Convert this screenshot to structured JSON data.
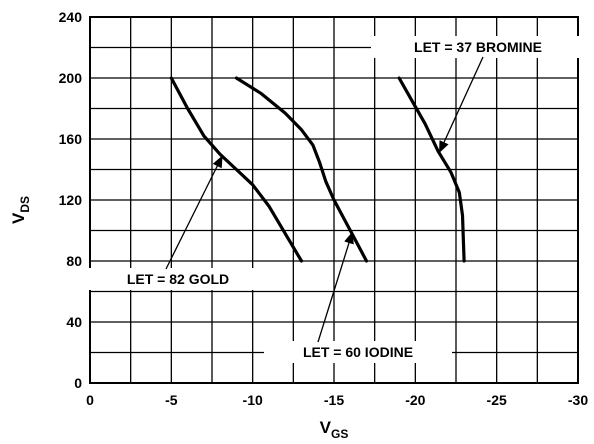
{
  "chart_data": {
    "type": "line",
    "xlabel": {
      "main": "V",
      "sub": "GS"
    },
    "ylabel": {
      "main": "V",
      "sub": "DS"
    },
    "xlim": [
      0,
      -30
    ],
    "ylim": [
      0,
      240
    ],
    "x_ticks": [
      0,
      -5,
      -10,
      -15,
      -20,
      -25,
      -30
    ],
    "y_ticks": [
      0,
      40,
      80,
      120,
      160,
      200,
      240
    ],
    "grid": true,
    "series": [
      {
        "name": "LET = 82 GOLD",
        "x": [
          -5,
          -6,
          -7,
          -8,
          -9,
          -10,
          -11,
          -12,
          -13
        ],
        "y": [
          200,
          180,
          162,
          150,
          140,
          130,
          116,
          98,
          80
        ]
      },
      {
        "name": "LET = 60 IODINE",
        "x": [
          -9,
          -10.5,
          -12,
          -13,
          -13.7,
          -14.1,
          -14.5,
          -15,
          -16,
          -17
        ],
        "y": [
          200,
          190,
          177,
          166,
          156,
          145,
          132,
          120,
          100,
          80
        ]
      },
      {
        "name": "LET = 37 BROMINE",
        "x": [
          -19,
          -19.8,
          -20.6,
          -21.4,
          -22.2,
          -22.7,
          -22.9,
          -23
        ],
        "y": [
          200,
          185,
          170,
          152,
          138,
          125,
          110,
          80
        ]
      }
    ],
    "annotations": [
      {
        "text": "LET = 82 GOLD",
        "series": 0,
        "x": -8,
        "y": 150
      },
      {
        "text": "LET = 60 IODINE",
        "series": 1,
        "x": -16,
        "y": 100
      },
      {
        "text": "LET = 37 BROMINE",
        "series": 2,
        "x": -21.3,
        "y": 150
      }
    ]
  }
}
